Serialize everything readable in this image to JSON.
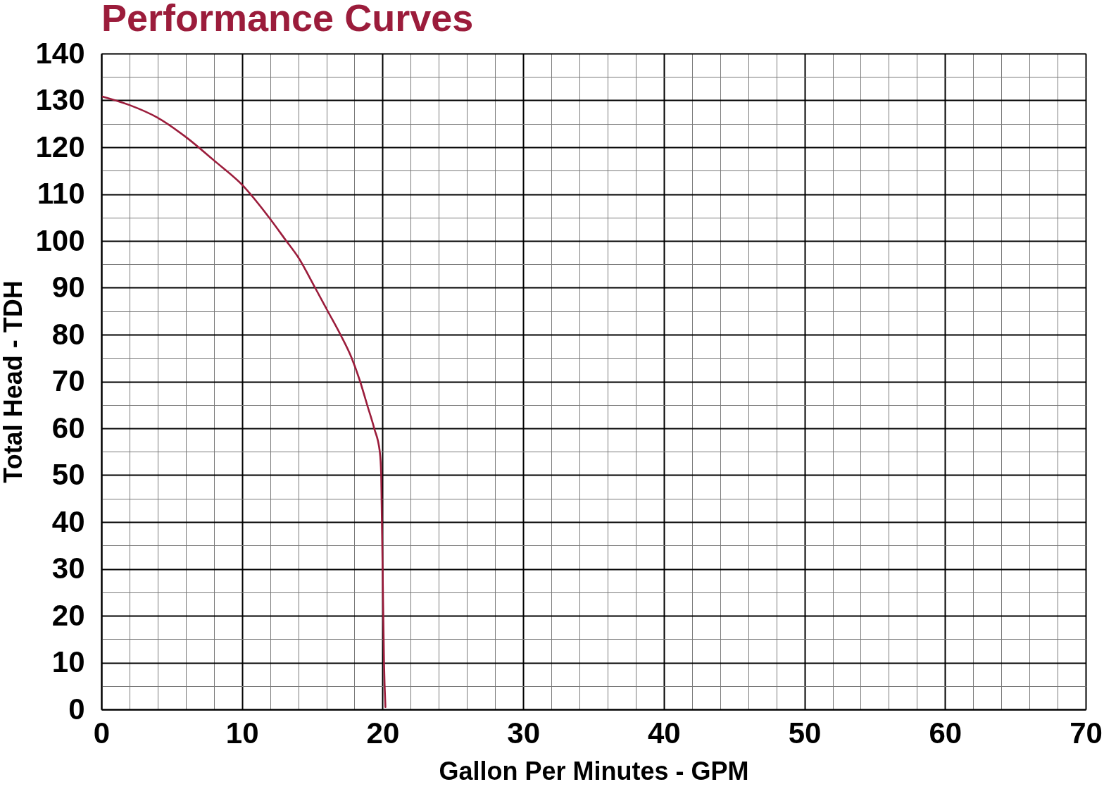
{
  "chart_data": {
    "type": "line",
    "title": "Performance Curves",
    "xlabel": "Gallon Per Minutes - GPM",
    "ylabel": "Total Head - TDH",
    "x": [
      0.1,
      2,
      4,
      6,
      8,
      10,
      12,
      13.1,
      14,
      15.2,
      16.1,
      17,
      17.8,
      18.4,
      18.9,
      19.4,
      19.8,
      19.9,
      19.95,
      20,
      20.1,
      20.2
    ],
    "series": [
      {
        "color": "#9b1c3b",
        "values": [
          130.8,
          129,
          126.3,
          122.2,
          117.2,
          112,
          104.7,
          100.2,
          96.5,
          90,
          85,
          80,
          75,
          70,
          65,
          60,
          55,
          50,
          40,
          30,
          10,
          0.5
        ]
      }
    ],
    "xlim": [
      0,
      70
    ],
    "ylim": [
      0,
      140
    ],
    "xticks": [
      0,
      {
        "value": 2,
        "label": null
      },
      {
        "value": 4,
        "label": null
      },
      {
        "value": 6,
        "label": null
      },
      {
        "value": 8,
        "label": null
      },
      10,
      {
        "value": 12,
        "label": null
      },
      {
        "value": 14,
        "label": null
      },
      {
        "value": 16,
        "label": null
      },
      {
        "value": 18,
        "label": null
      },
      20,
      {
        "value": 22,
        "label": null
      },
      {
        "value": 24,
        "label": null
      },
      {
        "value": 26,
        "label": null
      },
      {
        "value": 28,
        "label": null
      },
      30,
      {
        "value": 32,
        "label": null
      },
      {
        "value": 34,
        "label": null
      },
      {
        "value": 36,
        "label": null
      },
      {
        "value": 38,
        "label": null
      },
      40,
      {
        "value": 42,
        "label": null
      },
      {
        "value": 44,
        "label": null
      },
      {
        "value": 46,
        "label": null
      },
      {
        "value": 48,
        "label": null
      },
      50,
      {
        "value": 52,
        "label": null
      },
      {
        "value": 54,
        "label": null
      },
      {
        "value": 56,
        "label": null
      },
      {
        "value": 58,
        "label": null
      },
      60,
      {
        "value": 62,
        "label": null
      },
      {
        "value": 64,
        "label": null
      },
      {
        "value": 66,
        "label": null
      },
      {
        "value": 68,
        "label": null
      },
      70
    ],
    "yticks": [
      0,
      {
        "value": 5,
        "label": null
      },
      10,
      {
        "value": 15,
        "label": null
      },
      20,
      {
        "value": 25,
        "label": null
      },
      30,
      {
        "value": 35,
        "label": null
      },
      40,
      {
        "value": 45,
        "label": null
      },
      50,
      {
        "value": 55,
        "label": null
      },
      60,
      {
        "value": 65,
        "label": null
      },
      70,
      {
        "value": 75,
        "label": null
      },
      80,
      {
        "value": 85,
        "label": null
      },
      90,
      {
        "value": 95,
        "label": null
      },
      100,
      {
        "value": 105,
        "label": null
      },
      110,
      {
        "value": 115,
        "label": null
      },
      120,
      {
        "value": 125,
        "label": null
      },
      130,
      {
        "value": 135,
        "label": null
      },
      140
    ],
    "grid": true,
    "marker": "none",
    "line_style": "solid"
  }
}
